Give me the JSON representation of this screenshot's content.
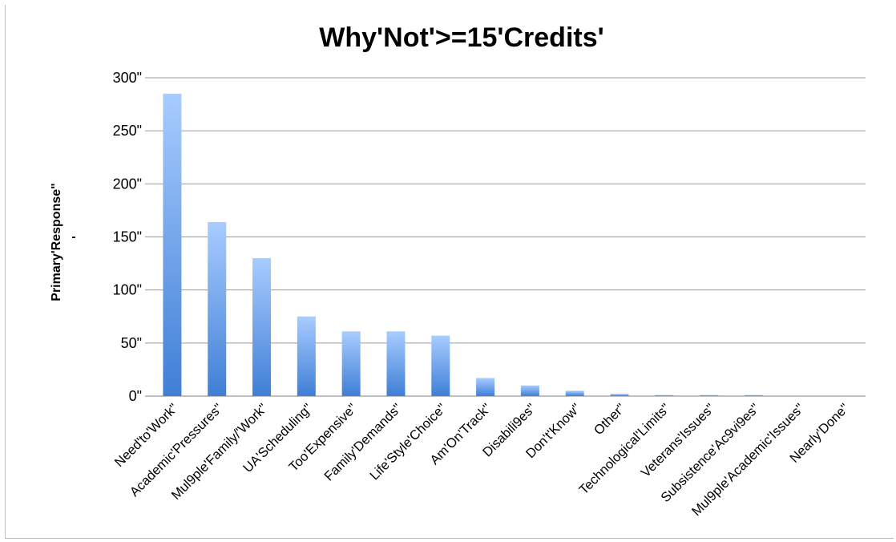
{
  "chart_data": {
    "type": "bar",
    "title": "Why'Not'>=15'Credits'",
    "ylabel": "Primary'Response\"",
    "ylabel_mark": "-",
    "xlabel": "",
    "categories": [
      "Need'to'Work\"",
      "Academic'Pressures\"",
      "Mul9ple'Family/'Work\"",
      "UA'Scheduling\"",
      "Too'Expensive\"",
      "Family'Demands\"",
      "Life'Style'Choice\"",
      "Am'On'Track\"",
      "Disabili9es\"",
      "Don't'Know\"",
      "Other\"",
      "Technological'Limits\"",
      "Veterans'Issues\"",
      "Subsistence'Ac9vi9es\"",
      "Mul9ple'Academic'Issues\"",
      "Nearly'Done\""
    ],
    "values": [
      285,
      164,
      130,
      75,
      61,
      61,
      57,
      17,
      10,
      5,
      2,
      1,
      1,
      1,
      0,
      0
    ],
    "ylim": [
      0,
      300
    ],
    "yticks": [
      {
        "value": 0,
        "label": "0\""
      },
      {
        "value": 50,
        "label": "50\""
      },
      {
        "value": 100,
        "label": "100\""
      },
      {
        "value": 150,
        "label": "150\""
      },
      {
        "value": 200,
        "label": "200\""
      },
      {
        "value": 250,
        "label": "250\""
      },
      {
        "value": 300,
        "label": "300\""
      }
    ],
    "grid": true,
    "legend": "none",
    "colors": {
      "bar_top": "#a8ccff",
      "bar_bottom": "#3f7fd6",
      "grid": "#9a9a9a"
    }
  }
}
